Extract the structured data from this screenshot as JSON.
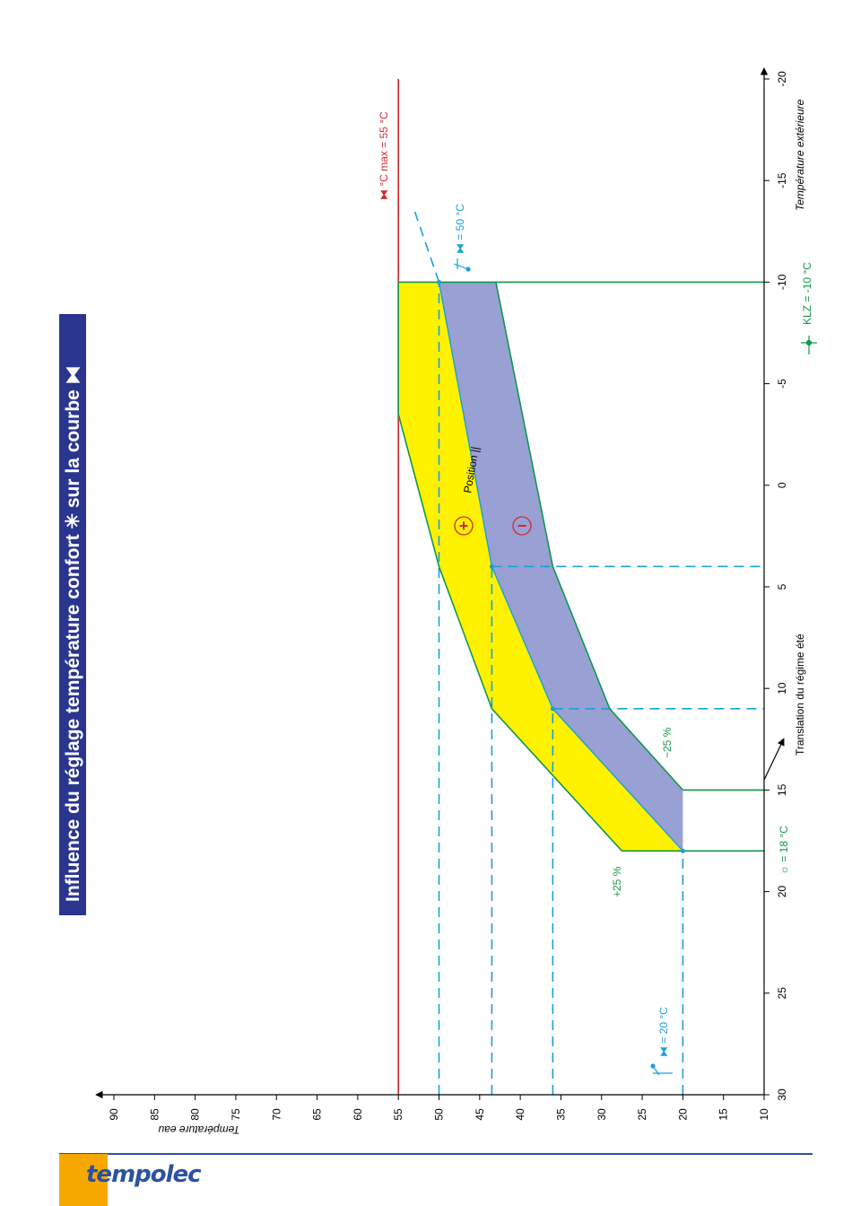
{
  "title": "Influence du réglage température confort  ✳ sur la courbe ⧓",
  "logo": "tempolec",
  "colors": {
    "max_line": "#d8262e",
    "cyan": "#1aa0d8",
    "green": "#12974a",
    "yellow": "#fff200",
    "band": "#98a0d4",
    "title_bg": "#2a3590",
    "brand": "#2a52a0",
    "logo_bg": "#f6a800"
  },
  "annotations": {
    "max": "⧓ °C max = 55 °C",
    "fifty": "⧓ = 50 °C",
    "twenty": "⧓ = 20 °C",
    "klz": "KLZ = -10 °C",
    "summer": "☼ = 18 °C",
    "plus25": "+25 %",
    "minus25": "−25 %",
    "position": "Position ||",
    "plus_sign": "+",
    "minus_sign": "−"
  },
  "chart_data": {
    "type": "area",
    "orientation": "rotated 90° counter-clockwise",
    "xlabel_top": "Température extérieure",
    "xlabel_bottom": "Translation du régime été",
    "ylabel": "Température eau",
    "x_ticks": [
      30,
      25,
      20,
      15,
      10,
      5,
      0,
      -5,
      -10,
      -15,
      -20
    ],
    "y_ticks": [
      10,
      15,
      20,
      25,
      30,
      35,
      40,
      45,
      50,
      55,
      60,
      65,
      70,
      75,
      80,
      85,
      90
    ],
    "xlim": [
      30,
      -20
    ],
    "ylim": [
      10,
      91
    ],
    "max_temperature": 55,
    "series": [
      {
        "name": "+25 %",
        "x": [
          18,
          11,
          4,
          -3.5,
          -10
        ],
        "y": [
          27.5,
          43.5,
          50,
          55,
          55
        ]
      },
      {
        "name": "Position ||",
        "x": [
          18,
          11,
          4,
          -10
        ],
        "y": [
          20,
          36,
          43.5,
          50
        ]
      },
      {
        "name": "−25 %",
        "x": [
          15,
          11,
          4,
          -10
        ],
        "y": [
          20,
          29,
          36,
          43
        ]
      }
    ],
    "summer_limit": 18,
    "klz": -10,
    "guide_lines": {
      "vertical": [
        20,
        36,
        43.5,
        50
      ],
      "horizontal": [
        11,
        4
      ]
    }
  }
}
